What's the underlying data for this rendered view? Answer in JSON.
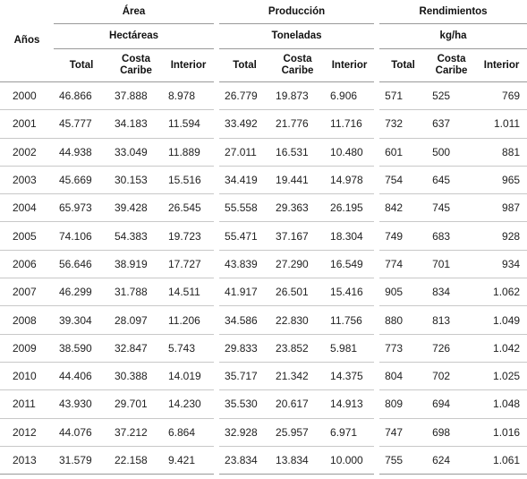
{
  "header": {
    "years_label": "Años",
    "groups": [
      {
        "title": "Área",
        "unit": "Hectáreas"
      },
      {
        "title": "Producción",
        "unit": "Toneladas"
      },
      {
        "title": "Rendimientos",
        "unit": "kg/ha"
      }
    ],
    "sub": {
      "total": "Total",
      "costa": "Costa Caribe",
      "interior": "Interior"
    }
  },
  "rows": [
    {
      "year": "2000",
      "v": [
        "46.866",
        "37.888",
        "8.978",
        "26.779",
        "19.873",
        "6.906",
        "571",
        "525",
        "769"
      ]
    },
    {
      "year": "2001",
      "v": [
        "45.777",
        "34.183",
        "11.594",
        "33.492",
        "21.776",
        "11.716",
        "732",
        "637",
        "1.011"
      ]
    },
    {
      "year": "2002",
      "v": [
        "44.938",
        "33.049",
        "11.889",
        "27.011",
        "16.531",
        "10.480",
        "601",
        "500",
        "881"
      ]
    },
    {
      "year": "2003",
      "v": [
        "45.669",
        "30.153",
        "15.516",
        "34.419",
        "19.441",
        "14.978",
        "754",
        "645",
        "965"
      ]
    },
    {
      "year": "2004",
      "v": [
        "65.973",
        "39.428",
        "26.545",
        "55.558",
        "29.363",
        "26.195",
        "842",
        "745",
        "987"
      ]
    },
    {
      "year": "2005",
      "v": [
        "74.106",
        "54.383",
        "19.723",
        "55.471",
        "37.167",
        "18.304",
        "749",
        "683",
        "928"
      ]
    },
    {
      "year": "2006",
      "v": [
        "56.646",
        "38.919",
        "17.727",
        "43.839",
        "27.290",
        "16.549",
        "774",
        "701",
        "934"
      ]
    },
    {
      "year": "2007",
      "v": [
        "46.299",
        "31.788",
        "14.511",
        "41.917",
        "26.501",
        "15.416",
        "905",
        "834",
        "1.062"
      ]
    },
    {
      "year": "2008",
      "v": [
        "39.304",
        "28.097",
        "11.206",
        "34.586",
        "22.830",
        "11.756",
        "880",
        "813",
        "1.049"
      ]
    },
    {
      "year": "2009",
      "v": [
        "38.590",
        "32.847",
        "5.743",
        "29.833",
        "23.852",
        "5.981",
        "773",
        "726",
        "1.042"
      ]
    },
    {
      "year": "2010",
      "v": [
        "44.406",
        "30.388",
        "14.019",
        "35.717",
        "21.342",
        "14.375",
        "804",
        "702",
        "1.025"
      ]
    },
    {
      "year": "2011",
      "v": [
        "43.930",
        "29.701",
        "14.230",
        "35.530",
        "20.617",
        "14.913",
        "809",
        "694",
        "1.048"
      ]
    },
    {
      "year": "2012",
      "v": [
        "44.076",
        "37.212",
        "6.864",
        "32.928",
        "25.957",
        "6.971",
        "747",
        "698",
        "1.016"
      ]
    },
    {
      "year": "2013",
      "v": [
        "31.579",
        "22.158",
        "9.421",
        "23.834",
        "13.834",
        "10.000",
        "755",
        "624",
        "1.061"
      ]
    }
  ]
}
